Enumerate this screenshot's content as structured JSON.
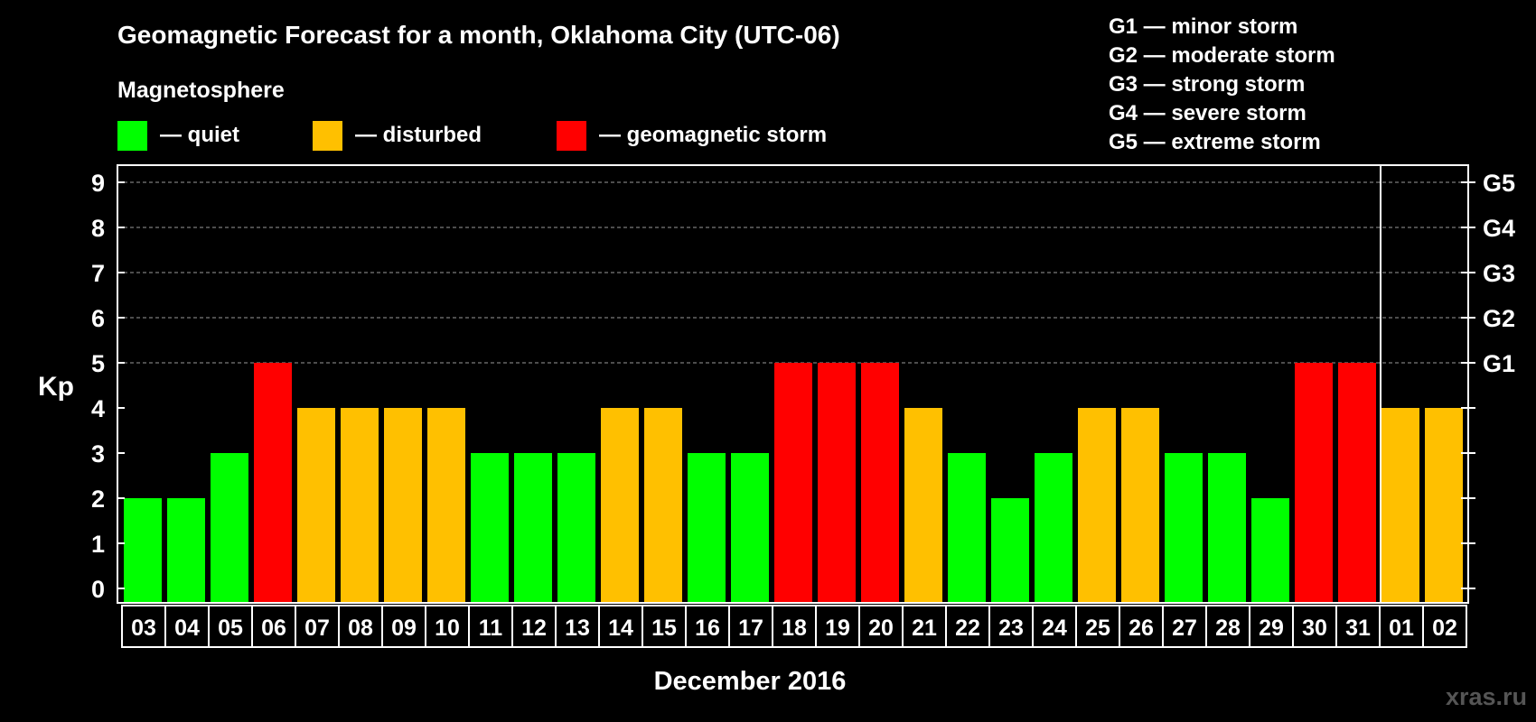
{
  "chart_data": {
    "type": "bar",
    "title": "Geomagnetic Forecast for a month, Oklahoma City (UTC-06)",
    "ylabel": "Kp",
    "xlabel": "December 2016",
    "ylim": [
      0,
      9
    ],
    "yticks": [
      "0",
      "1",
      "2",
      "3",
      "4",
      "5",
      "6",
      "7",
      "8",
      "9"
    ],
    "right_ticks": [
      {
        "value": 5,
        "label": "G1"
      },
      {
        "value": 6,
        "label": "G2"
      },
      {
        "value": 7,
        "label": "G3"
      },
      {
        "value": 8,
        "label": "G4"
      },
      {
        "value": 9,
        "label": "G5"
      }
    ],
    "categories": [
      "03",
      "04",
      "05",
      "06",
      "07",
      "08",
      "09",
      "10",
      "11",
      "12",
      "13",
      "14",
      "15",
      "16",
      "17",
      "18",
      "19",
      "20",
      "21",
      "22",
      "23",
      "24",
      "25",
      "26",
      "27",
      "28",
      "29",
      "30",
      "31",
      "01",
      "02"
    ],
    "values": [
      2,
      2,
      3,
      5,
      4,
      4,
      4,
      4,
      3,
      3,
      3,
      4,
      4,
      3,
      3,
      5,
      5,
      5,
      4,
      3,
      2,
      3,
      4,
      4,
      3,
      3,
      2,
      5,
      5,
      4,
      4
    ],
    "month_divider_after_index": 28,
    "legend": {
      "heading": "Magnetosphere",
      "items": [
        {
          "label": "— quiet",
          "color": "#00ff00"
        },
        {
          "label": "— disturbed",
          "color": "#ffc000"
        },
        {
          "label": "— geomagnetic storm",
          "color": "#ff0000"
        }
      ]
    },
    "storm_scale": [
      "G1 — minor storm",
      "G2 — moderate storm",
      "G3 — strong storm",
      "G4 — severe storm",
      "G5 — extreme storm"
    ],
    "watermark": "xras.ru",
    "colors": {
      "quiet": "#00ff00",
      "disturbed": "#ffc000",
      "storm": "#ff0000",
      "background": "#000000",
      "foreground": "#ffffff"
    }
  }
}
